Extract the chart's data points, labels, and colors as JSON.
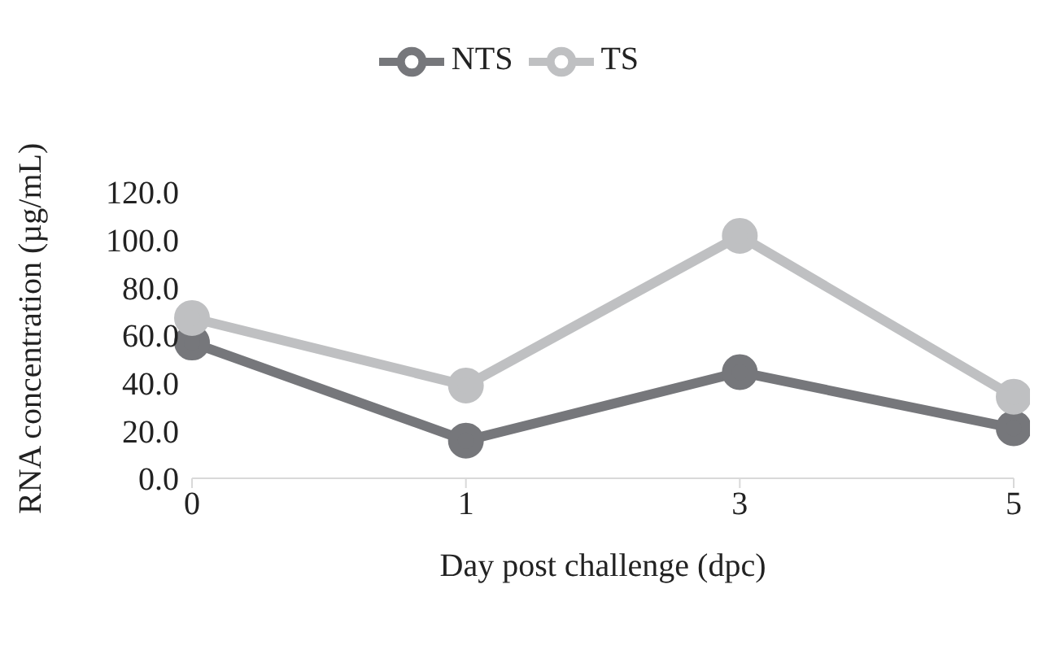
{
  "chart_data": {
    "type": "line",
    "xlabel": "Day post challenge (dpc)",
    "ylabel": "RNA concentration (µg/mL)",
    "categories": [
      "0",
      "1",
      "3",
      "5"
    ],
    "series": [
      {
        "name": "NTS",
        "color": "#76777b",
        "values": [
          56.9,
          15.8,
          44.5,
          21.0
        ]
      },
      {
        "name": "TS",
        "color": "#bfc0c2",
        "values": [
          67.2,
          38.9,
          101.6,
          34.2
        ]
      }
    ],
    "ylim": [
      0,
      120
    ],
    "yticks": [
      {
        "value": 0,
        "label": "0.0"
      },
      {
        "value": 20,
        "label": "20.0"
      },
      {
        "value": 40,
        "label": "40.0"
      },
      {
        "value": 60,
        "label": "60.0"
      },
      {
        "value": 80,
        "label": "80.0"
      },
      {
        "value": 100,
        "label": "100.0"
      },
      {
        "value": 120,
        "label": "120.0"
      }
    ],
    "grid": false,
    "legend": "top",
    "marker": "circle",
    "line_style": "solid"
  }
}
